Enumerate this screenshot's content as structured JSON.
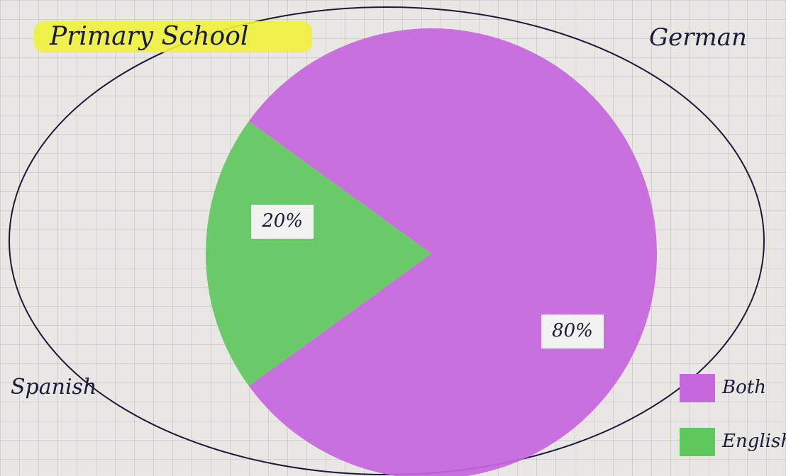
{
  "chart_data": {
    "type": "pie",
    "title": "Primary School",
    "annotations": [
      "German",
      "Spanish"
    ],
    "categories": [
      "Both",
      "English"
    ],
    "values": [
      80,
      20
    ],
    "value_labels": [
      "80%",
      "20%"
    ],
    "colors": [
      "#c466dc",
      "#5ec85c"
    ]
  }
}
